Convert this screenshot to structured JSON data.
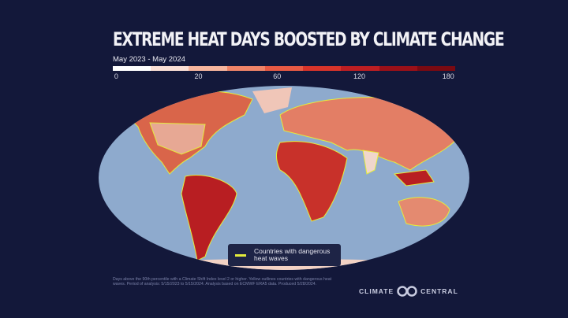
{
  "header": {
    "title": "EXTREME HEAT DAYS BOOSTED BY CLIMATE CHANGE",
    "subtitle": "May 2023 - May 2024"
  },
  "colorscale": {
    "ticks": [
      "0",
      "20",
      "60",
      "120",
      "180"
    ],
    "colors": [
      "#ffffff",
      "#fbe0d6",
      "#f7b59e",
      "#f08468",
      "#e85a44",
      "#d8342a",
      "#bd1e22",
      "#9b1018",
      "#7a0a12"
    ]
  },
  "map": {
    "ocean_color": "#8eaacd",
    "outline_color": "#e4ec3c"
  },
  "legend": {
    "label": "Countries with dangerous heat waves"
  },
  "footnote": "Days above the 90th percentile with a Climate Shift Index level 2 or higher. Yellow outlines countries with dangerous heat waves. Period of analysis: 5/15/2023 to 5/15/2024. Analysis based on ECMWF ERA5 data. Produced 5/28/2024.",
  "logo": {
    "left": "CLIMATE",
    "right": "CENTRAL"
  }
}
